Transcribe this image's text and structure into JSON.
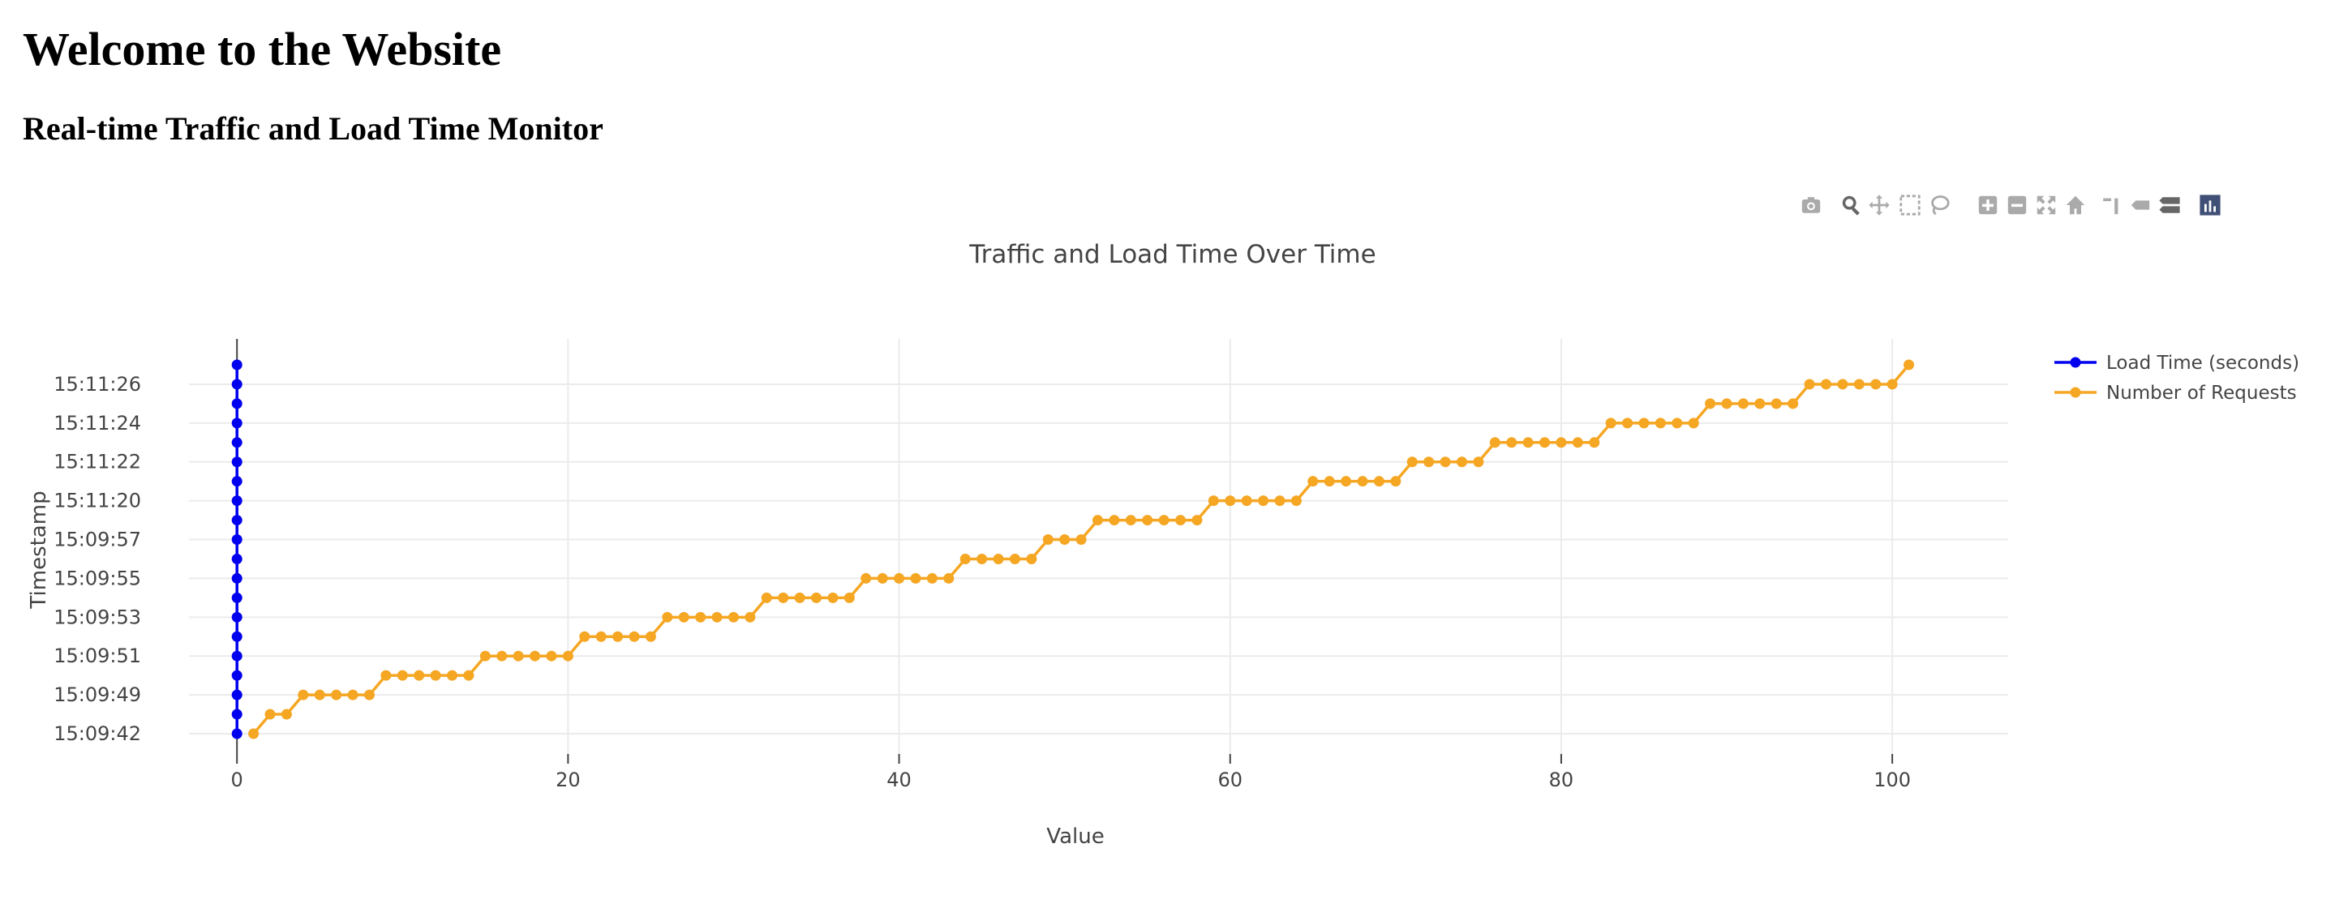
{
  "page": {
    "heading": "Welcome to the Website",
    "subheading": "Real-time Traffic and Load Time Monitor"
  },
  "modebar": {
    "buttons": [
      "camera-icon",
      "zoom-icon",
      "pan-icon",
      "box-select-icon",
      "lasso-icon",
      "zoom-in-icon",
      "zoom-out-icon",
      "autoscale-icon",
      "home-icon",
      "spike-lines-icon",
      "hover-closest-icon",
      "hover-compare-icon",
      "plotly-logo-icon"
    ]
  },
  "chart_data": {
    "type": "line",
    "title": "Traffic and Load Time Over Time",
    "xlabel": "Value",
    "ylabel": "Timestamp",
    "xlim": [
      -2.9,
      107
    ],
    "x_ticks": [
      0,
      20,
      40,
      60,
      80,
      100
    ],
    "y_tick_labels": [
      "15:09:42",
      "15:09:49",
      "15:09:51",
      "15:09:53",
      "15:09:55",
      "15:09:57",
      "15:11:20",
      "15:11:22",
      "15:11:24",
      "15:11:26"
    ],
    "y_ticks_at_row": [
      0,
      2,
      4,
      6,
      8,
      10,
      12,
      14,
      16,
      18
    ],
    "y_row_count": 20,
    "grid": true,
    "legend_position": "top-right",
    "series": [
      {
        "name": "Load Time (seconds)",
        "color": "#0000ee",
        "x": [
          0,
          0,
          0,
          0,
          0,
          0,
          0,
          0,
          0,
          0,
          0,
          0,
          0,
          0,
          0,
          0,
          0,
          0,
          0,
          0
        ],
        "y_row": [
          0,
          1,
          2,
          3,
          4,
          5,
          6,
          7,
          8,
          9,
          10,
          11,
          12,
          13,
          14,
          15,
          16,
          17,
          18,
          19
        ]
      },
      {
        "name": "Number of Requests",
        "color": "#f5a623",
        "x": [
          1,
          2,
          3,
          4,
          5,
          6,
          7,
          8,
          9,
          10,
          11,
          12,
          13,
          14,
          15,
          16,
          17,
          18,
          19,
          20,
          21,
          22,
          23,
          24,
          25,
          26,
          27,
          28,
          29,
          30,
          31,
          32,
          33,
          34,
          35,
          36,
          37,
          38,
          39,
          40,
          41,
          42,
          43,
          44,
          45,
          46,
          47,
          48,
          49,
          50,
          51,
          52,
          53,
          54,
          55,
          56,
          57,
          58,
          59,
          60,
          61,
          62,
          63,
          64,
          65,
          66,
          67,
          68,
          69,
          70,
          71,
          72,
          73,
          74,
          75,
          76,
          77,
          78,
          79,
          80,
          81,
          82,
          83,
          84,
          85,
          86,
          87,
          88,
          89,
          90,
          91,
          92,
          93,
          94,
          95,
          96,
          97,
          98,
          99,
          100,
          101
        ],
        "y_row": [
          0,
          1,
          1,
          2,
          2,
          2,
          2,
          2,
          3,
          3,
          3,
          3,
          3,
          3,
          4,
          4,
          4,
          4,
          4,
          4,
          5,
          5,
          5,
          5,
          5,
          6,
          6,
          6,
          6,
          6,
          6,
          7,
          7,
          7,
          7,
          7,
          7,
          8,
          8,
          8,
          8,
          8,
          8,
          9,
          9,
          9,
          9,
          9,
          10,
          10,
          10,
          11,
          11,
          11,
          11,
          11,
          11,
          11,
          12,
          12,
          12,
          12,
          12,
          12,
          13,
          13,
          13,
          13,
          13,
          13,
          14,
          14,
          14,
          14,
          14,
          15,
          15,
          15,
          15,
          15,
          15,
          15,
          16,
          16,
          16,
          16,
          16,
          16,
          17,
          17,
          17,
          17,
          17,
          17,
          18,
          18,
          18,
          18,
          18,
          18,
          19
        ]
      }
    ]
  }
}
